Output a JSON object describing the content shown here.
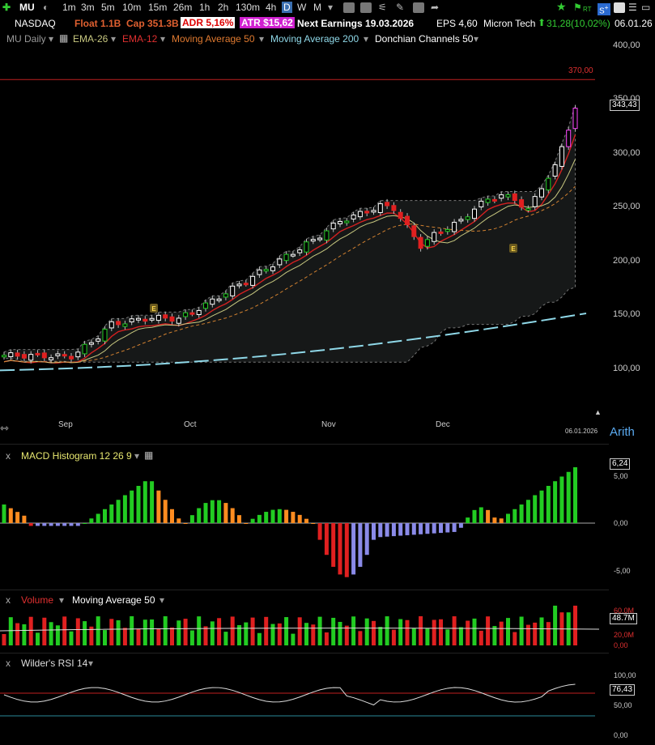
{
  "toolbar": {
    "symbol": "MU",
    "timeframes": [
      "1m",
      "3m",
      "5m",
      "10m",
      "15m",
      "26m",
      "1h",
      "2h",
      "130m",
      "4h",
      "D",
      "W",
      "M"
    ],
    "active_timeframe": "D",
    "rt_label": "RT"
  },
  "info": {
    "exchange": "NASDAQ",
    "float": "Float 1.1B",
    "cap": "Cap 351.3B",
    "adr": "ADR  5,16%",
    "atr": "ATR $15,62",
    "next_earnings": "Next Earnings 19.03.2026",
    "eps": "EPS 4,60",
    "company": "Micron Tech",
    "change": "31,28(10,02%)",
    "date": "06.01.26"
  },
  "indicators": {
    "main": "MU Daily",
    "ema26": "EMA-26",
    "ema12": "EMA-12",
    "ma50": "Moving Average 50",
    "ma200": "Moving Average 200",
    "donchian": "Donchian Channels 50"
  },
  "price_axis": {
    "ticks": [
      "400,00",
      "350,00",
      "300,00",
      "250,00",
      "200,00",
      "150,00",
      "100,00"
    ],
    "current": "343,43",
    "alert": "370,00",
    "scale": "Arith"
  },
  "time_axis": {
    "months": [
      "Sep",
      "Oct",
      "Nov",
      "Dec"
    ],
    "last_date": "06.01.2026"
  },
  "macd": {
    "label": "MACD Histogram 12 26 9",
    "current": "6,24",
    "ticks": [
      "5,00",
      "0,00",
      "-5,00"
    ]
  },
  "volume": {
    "label": "Volume",
    "ma_label": "Moving Average 50",
    "current": "48.7M",
    "ticks": [
      "60,0M",
      "20,0M",
      "0,00"
    ]
  },
  "rsi": {
    "label": "Wilder's RSI 14",
    "current": "76,43",
    "ticks": [
      "100,00",
      "50,00",
      "0,00"
    ]
  },
  "colors": {
    "up": "#22cc22",
    "down": "#e02020",
    "accent_pink": "#ff44ff",
    "ema12": "#d32020",
    "ema26": "#c8c880",
    "ma50": "#d08030",
    "ma200": "#8fd8e8"
  }
}
